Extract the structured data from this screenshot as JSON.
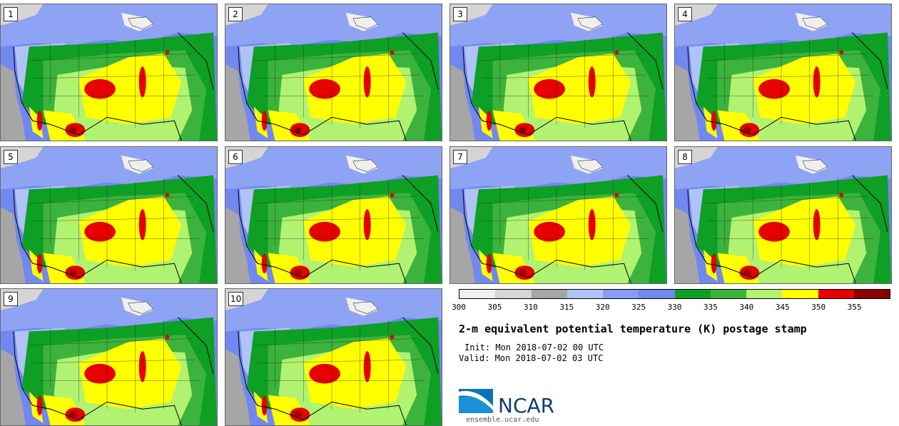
{
  "stamps": [
    {
      "label": "1"
    },
    {
      "label": "2"
    },
    {
      "label": "3"
    },
    {
      "label": "4"
    },
    {
      "label": "5"
    },
    {
      "label": "6"
    },
    {
      "label": "7"
    },
    {
      "label": "8"
    },
    {
      "label": "9"
    },
    {
      "label": "10"
    }
  ],
  "colorbar": {
    "ticks": [
      "300",
      "305",
      "310",
      "315",
      "320",
      "325",
      "330",
      "335",
      "340",
      "345",
      "350",
      "355"
    ],
    "colors": [
      "#efefef",
      "#d5d5d5",
      "#a6a6a6",
      "#afc3f7",
      "#879cf3",
      "#7188f0",
      "#0e9f25",
      "#3cb33c",
      "#b1f270",
      "#ffff00",
      "#e60000",
      "#8a0000"
    ]
  },
  "title": "2-m equivalent potential temperature (K) postage stamp",
  "init": "Init: Mon 2018-07-02 00 UTC",
  "valid": "Valid: Mon 2018-07-02 03 UTC",
  "logo": {
    "name": "NCAR",
    "url": "ensemble.ucar.edu"
  }
}
